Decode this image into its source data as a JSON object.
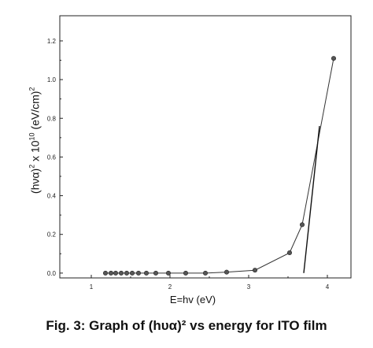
{
  "chart_data": {
    "type": "line",
    "title": "",
    "xlabel": "E=hv (eV)",
    "ylabel_parts": {
      "prefix": "(hνα)",
      "exp1": "2",
      "mid": " x 10",
      "exp2": "10",
      "suffix": " (eV/cm)",
      "exp3": "2"
    },
    "xlim": [
      0.6,
      4.3
    ],
    "ylim": [
      -0.025,
      1.33
    ],
    "x_ticks": [
      1,
      2,
      3,
      4
    ],
    "y_ticks": [
      0.0,
      0.2,
      0.4,
      0.6,
      0.8,
      1.0,
      1.2
    ],
    "x_tick_labels": [
      "1",
      "2",
      "3",
      "4"
    ],
    "y_tick_labels": [
      "0.0",
      "0.2",
      "0.4",
      "0.6",
      "0.8",
      "1.0",
      "1.2"
    ],
    "grid": false,
    "series": [
      {
        "x": [
          1.18,
          1.25,
          1.31,
          1.38,
          1.45,
          1.52,
          1.6,
          1.7,
          1.82,
          1.98,
          2.2,
          2.45,
          2.72,
          3.08,
          3.52,
          3.68,
          4.08
        ],
        "y": [
          0.0,
          0.0,
          0.0,
          0.0,
          0.0,
          0.0,
          0.0,
          0.0,
          0.0,
          0.0,
          0.0,
          0.0,
          0.005,
          0.015,
          0.105,
          0.25,
          1.11
        ],
        "color": "#333333"
      }
    ],
    "fit_line": {
      "x": [
        3.7,
        3.9
      ],
      "y": [
        0.0,
        0.76
      ]
    }
  },
  "caption": "Fig. 3: Graph of (hυα)² vs energy for ITO film"
}
